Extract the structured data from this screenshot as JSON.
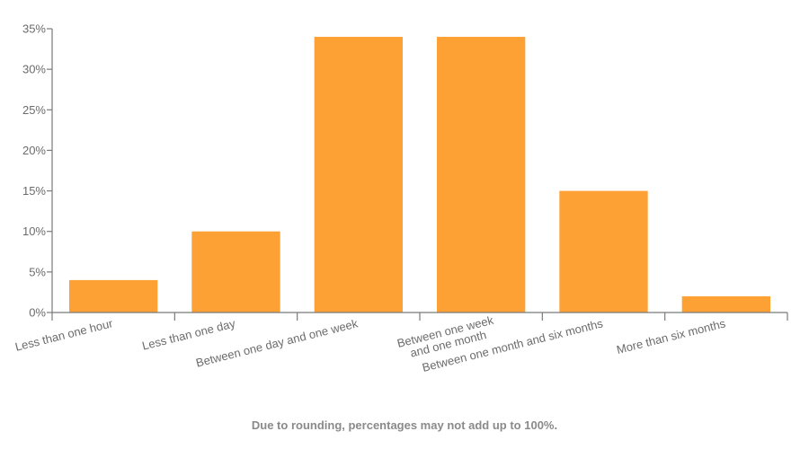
{
  "chart_data": {
    "type": "bar",
    "title": "",
    "xlabel": "",
    "ylabel": "",
    "categories": [
      [
        "Less than one hour"
      ],
      [
        "Less than one day"
      ],
      [
        "Between one day and one week"
      ],
      [
        "Between one week",
        "and one month"
      ],
      [
        "Between one month and six months"
      ],
      [
        "More than six months"
      ]
    ],
    "values": [
      4,
      10,
      34,
      34,
      15,
      2
    ],
    "ylim": [
      0,
      35
    ],
    "yticks": [
      0,
      5,
      10,
      15,
      20,
      25,
      30,
      35
    ],
    "ytick_suffix": "%",
    "grid": false,
    "legend": null,
    "bar_color": "#fea135",
    "axis_color": "#7a7a7a"
  },
  "footnote": "Due to rounding, percentages may not add up to 100%."
}
